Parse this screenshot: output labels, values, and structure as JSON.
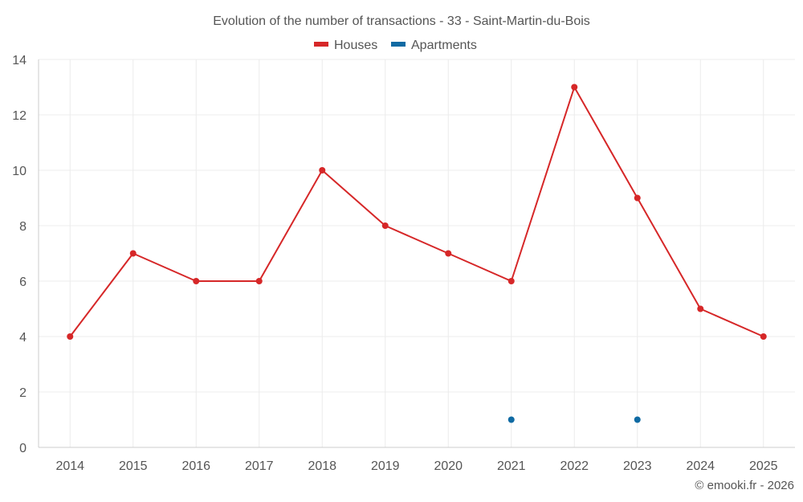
{
  "chart_data": {
    "type": "line",
    "title": "Evolution of the number of transactions - 33 - Saint-Martin-du-Bois",
    "categories": [
      "2014",
      "2015",
      "2016",
      "2017",
      "2018",
      "2019",
      "2020",
      "2021",
      "2022",
      "2023",
      "2024",
      "2025"
    ],
    "series": [
      {
        "name": "Houses",
        "color": "#d62728",
        "values": [
          4,
          7,
          6,
          6,
          10,
          8,
          7,
          6,
          13,
          9,
          5,
          4
        ]
      },
      {
        "name": "Apartments",
        "color": "#0f6aa3",
        "values": [
          null,
          null,
          null,
          null,
          null,
          null,
          null,
          1,
          null,
          1,
          null,
          null
        ]
      }
    ],
    "ylim": [
      0,
      14
    ],
    "yticks": [
      0,
      2,
      4,
      6,
      8,
      10,
      12,
      14
    ],
    "grid": true,
    "legend": "top-center",
    "credit": "© emooki.fr - 2026"
  }
}
